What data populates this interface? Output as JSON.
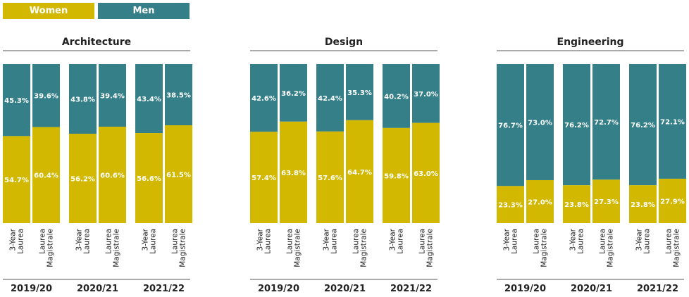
{
  "legend": {
    "women": "Women",
    "men": "Men"
  },
  "colors": {
    "women": "#d2b800",
    "men": "#347f88",
    "text": "#222222"
  },
  "chart_data": {
    "type": "bar",
    "stacked": true,
    "normalized": true,
    "ylim": [
      0,
      100
    ],
    "grid": false,
    "legend_placement": "top-left",
    "series_names": [
      "Women",
      "Men"
    ],
    "bar_labels": [
      "3-Year Laurea",
      "Laurea Magistrale"
    ],
    "years": [
      "2019/20",
      "2020/21",
      "2021/22"
    ],
    "panels": [
      {
        "title": "Architecture",
        "groups": [
          {
            "year": "2019/20",
            "bars": [
              {
                "label": "3-Year Laurea",
                "women": 54.7,
                "men": 45.3
              },
              {
                "label": "Laurea Magistrale",
                "women": 60.4,
                "men": 39.6
              }
            ]
          },
          {
            "year": "2020/21",
            "bars": [
              {
                "label": "3-Year Laurea",
                "women": 56.2,
                "men": 43.8
              },
              {
                "label": "Laurea Magistrale",
                "women": 60.6,
                "men": 39.4
              }
            ]
          },
          {
            "year": "2021/22",
            "bars": [
              {
                "label": "3-Year Laurea",
                "women": 56.6,
                "men": 43.4
              },
              {
                "label": "Laurea Magistrale",
                "women": 61.5,
                "men": 38.5
              }
            ]
          }
        ]
      },
      {
        "title": "Design",
        "groups": [
          {
            "year": "2019/20",
            "bars": [
              {
                "label": "3-Year Laurea",
                "women": 57.4,
                "men": 42.6
              },
              {
                "label": "Laurea Magistrale",
                "women": 63.8,
                "men": 36.2
              }
            ]
          },
          {
            "year": "2020/21",
            "bars": [
              {
                "label": "3-Year Laurea",
                "women": 57.6,
                "men": 42.4
              },
              {
                "label": "Laurea Magistrale",
                "women": 64.7,
                "men": 35.3
              }
            ]
          },
          {
            "year": "2021/22",
            "bars": [
              {
                "label": "3-Year Laurea",
                "women": 59.8,
                "men": 40.2
              },
              {
                "label": "Laurea Magistrale",
                "women": 63.0,
                "men": 37.0
              }
            ]
          }
        ]
      },
      {
        "title": "Engineering",
        "groups": [
          {
            "year": "2019/20",
            "bars": [
              {
                "label": "3-Year Laurea",
                "women": 23.3,
                "men": 76.7
              },
              {
                "label": "Laurea Magistrale",
                "women": 27.0,
                "men": 73.0
              }
            ]
          },
          {
            "year": "2020/21",
            "bars": [
              {
                "label": "3-Year Laurea",
                "women": 23.8,
                "men": 76.2
              },
              {
                "label": "Laurea Magistrale",
                "women": 27.3,
                "men": 72.7
              }
            ]
          },
          {
            "year": "2021/22",
            "bars": [
              {
                "label": "3-Year Laurea",
                "women": 23.8,
                "men": 76.2
              },
              {
                "label": "Laurea Magistrale",
                "women": 27.9,
                "men": 72.1
              }
            ]
          }
        ]
      }
    ]
  }
}
